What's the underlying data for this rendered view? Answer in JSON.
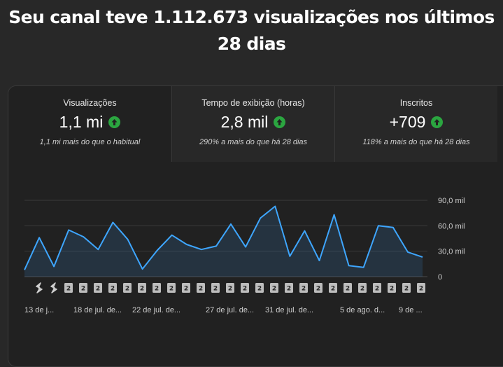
{
  "headline": "Seu canal teve 1.112.673 visualizações nos últimos 28 dias",
  "metrics": [
    {
      "label": "Visualizações",
      "value": "1,1 mi",
      "note": "1,1 mi mais do que o habitual",
      "trend": "up"
    },
    {
      "label": "Tempo de exibição (horas)",
      "value": "2,8 mil",
      "note": "290% a mais do que há 28 dias",
      "trend": "up"
    },
    {
      "label": "Inscritos",
      "value": "+709",
      "note": "118% a mais do que há 28 dias",
      "trend": "up"
    }
  ],
  "colors": {
    "line": "#3ea6ff",
    "trend_up": "#2ba640",
    "badge": "#bdbdbd"
  },
  "chart_data": {
    "type": "area",
    "ylim": [
      0,
      90000
    ],
    "yticks": [
      {
        "value": 90000,
        "label": "90,0 mil"
      },
      {
        "value": 60000,
        "label": "60,0 mil"
      },
      {
        "value": 30000,
        "label": "30,0 mil"
      },
      {
        "value": 0,
        "label": "0"
      }
    ],
    "x_labels": [
      "13 de j...",
      "18 de jul. de...",
      "22 de jul. de...",
      "27 de jul. de...",
      "31 de jul. de...",
      "5 de ago. d...",
      "9 de ..."
    ],
    "values": [
      8000,
      46000,
      12000,
      55000,
      47000,
      32000,
      64000,
      44000,
      9000,
      31000,
      49000,
      38000,
      32000,
      36000,
      62000,
      35000,
      69000,
      83000,
      24000,
      54000,
      19000,
      73000,
      13000,
      11000,
      60000,
      58000,
      29000,
      23000
    ],
    "markers": [
      "shorts",
      "shorts",
      "2",
      "2",
      "2",
      "2",
      "2",
      "2",
      "2",
      "2",
      "2",
      "2",
      "2",
      "2",
      "2",
      "2",
      "2",
      "2",
      "2",
      "2",
      "2",
      "2",
      "2",
      "2",
      "2",
      "2",
      "2"
    ]
  }
}
